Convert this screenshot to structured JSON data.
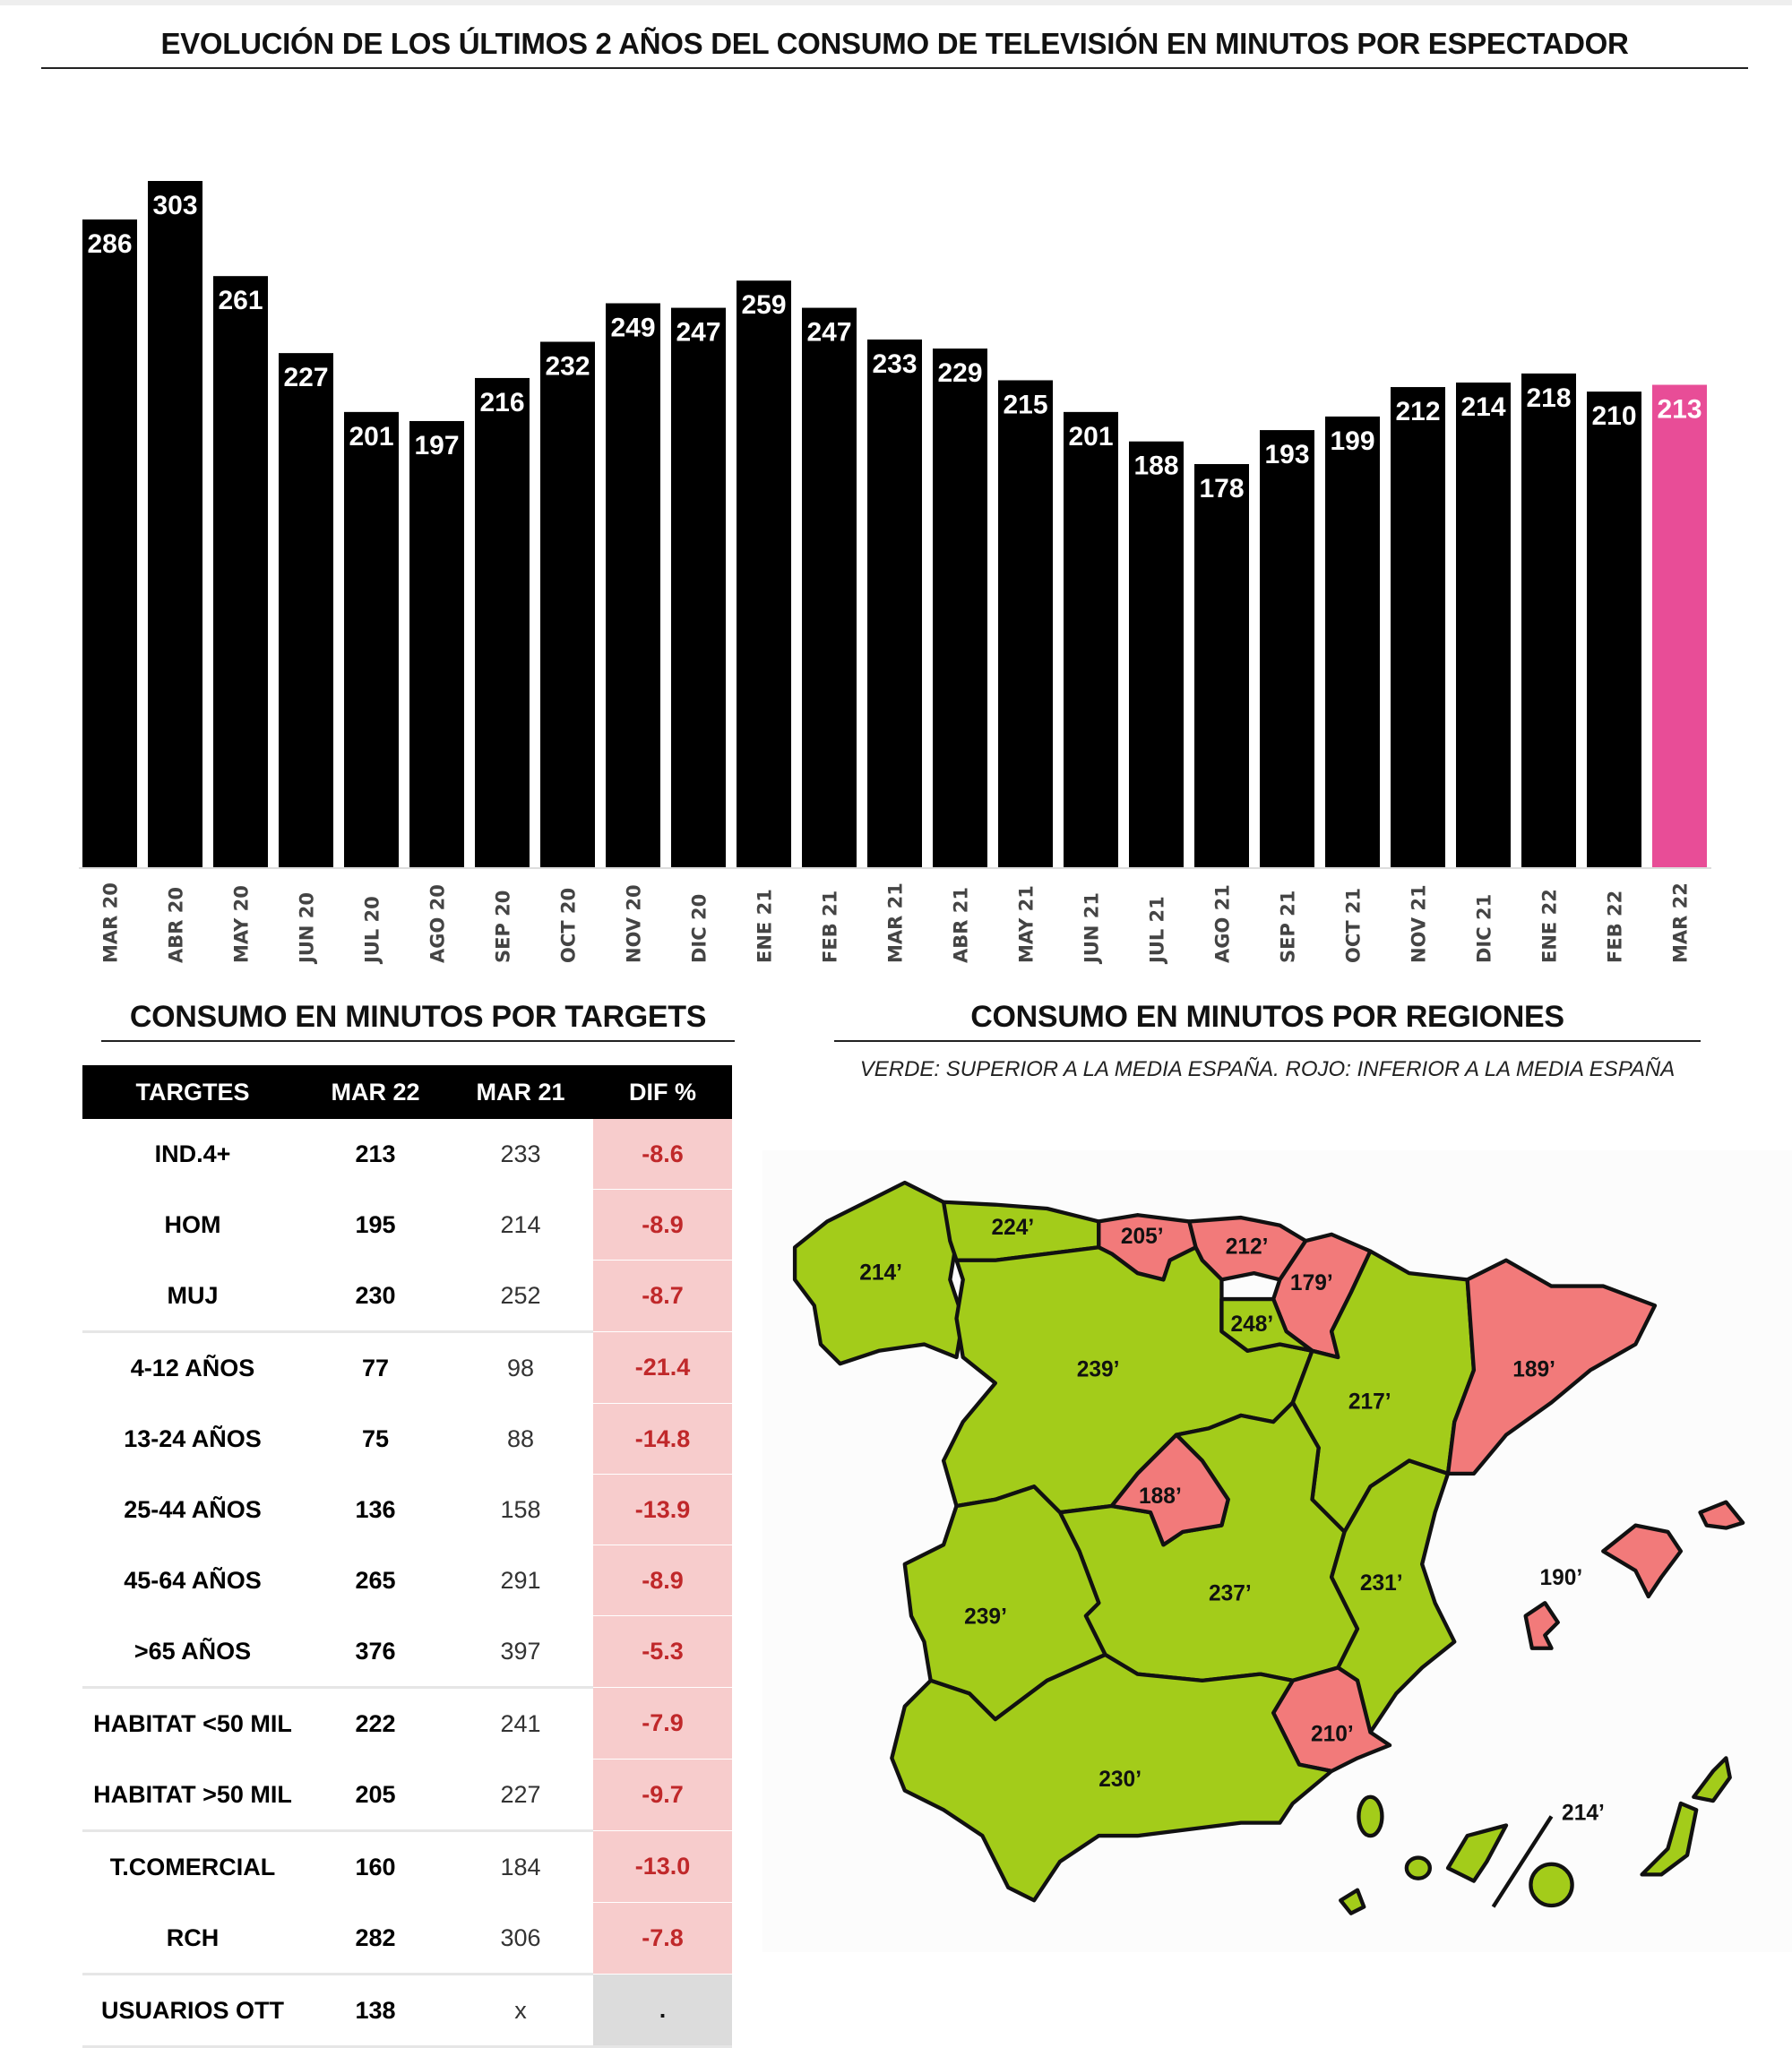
{
  "chart_data": {
    "type": "bar",
    "title": "EVOLUCIÓN DE LOS ÚLTIMOS 2 AÑOS DEL CONSUMO DE TELEVISIÓN EN MINUTOS POR ESPECTADOR",
    "categories": [
      "MAR 20",
      "ABR 20",
      "MAY 20",
      "JUN 20",
      "JUL 20",
      "AGO 20",
      "SEP 20",
      "OCT 20",
      "NOV 20",
      "DIC 20",
      "ENE 21",
      "FEB 21",
      "MAR 21",
      "ABR 21",
      "MAY 21",
      "JUN 21",
      "JUL 21",
      "AGO 21",
      "SEP 21",
      "OCT 21",
      "NOV 21",
      "DIC 21",
      "ENE 22",
      "FEB 22",
      "MAR 22"
    ],
    "values": [
      286,
      303,
      261,
      227,
      201,
      197,
      216,
      232,
      249,
      247,
      259,
      247,
      233,
      229,
      215,
      201,
      188,
      178,
      193,
      199,
      212,
      214,
      218,
      210,
      213
    ],
    "xlabel": "",
    "ylabel": "",
    "ylim": [
      0,
      303
    ],
    "grid": false,
    "colors": {
      "default": "#000000",
      "highlight": "#e84d97",
      "highlight_category": "MAR 22"
    }
  },
  "targets": {
    "title": "CONSUMO EN MINUTOS POR TARGETS",
    "headers": [
      "TARGTES",
      "MAR 22",
      "MAR 21",
      "DIF %"
    ],
    "rows": [
      [
        "IND.4+",
        "213",
        "233",
        "-8.6"
      ],
      [
        "HOM",
        "195",
        "214",
        "-8.9"
      ],
      [
        "MUJ",
        "230",
        "252",
        "-8.7"
      ],
      [
        "4-12 AÑOS",
        "77",
        "98",
        "-21.4"
      ],
      [
        "13-24 AÑOS",
        "75",
        "88",
        "-14.8"
      ],
      [
        "25-44 AÑOS",
        "136",
        "158",
        "-13.9"
      ],
      [
        "45-64 AÑOS",
        "265",
        "291",
        "-8.9"
      ],
      [
        ">65 AÑOS",
        "376",
        "397",
        "-5.3"
      ],
      [
        "HABITAT <50 MIL",
        "222",
        "241",
        "-7.9"
      ],
      [
        "HABITAT >50 MIL",
        "205",
        "227",
        "-9.7"
      ],
      [
        "T.COMERCIAL",
        "160",
        "184",
        "-13.0"
      ],
      [
        "RCH",
        "282",
        "306",
        "-7.8"
      ],
      [
        "USUARIOS OTT",
        "138",
        "x",
        "."
      ]
    ]
  },
  "regions": {
    "title": "CONSUMO EN MINUTOS POR REGIONES",
    "legend": "VERDE: SUPERIOR A LA MEDIA ESPAÑA. ROJO: INFERIOR A LA MEDIA ESPAÑA",
    "colors": {
      "above": "#a3cc1a",
      "below": "#f27a7a"
    },
    "values": {
      "galicia": "214’",
      "asturias": "224’",
      "cantabria": "205’",
      "pais_vasco": "212’",
      "navarra": "179’",
      "rioja": "248’",
      "castilla_leon": "239’",
      "aragon": "217’",
      "cataluna": "189’",
      "madrid": "188’",
      "castilla_mancha": "237’",
      "extremadura": "239’",
      "valencia": "231’",
      "murcia": "210’",
      "andalucia": "230’",
      "baleares": "190’",
      "canarias": "214’"
    }
  }
}
